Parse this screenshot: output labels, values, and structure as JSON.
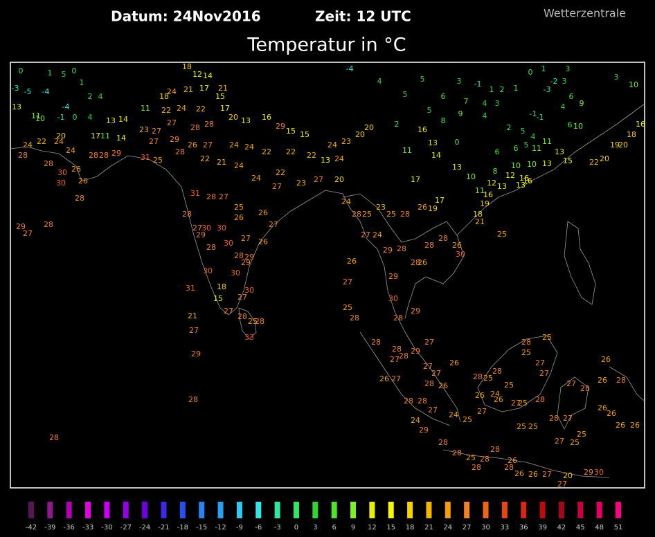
{
  "header": {
    "date_label": "Datum: 24Nov2016",
    "time_label": "Zeit: 12 UTC",
    "source": "Wetterzentrale",
    "title": "Temperatur in °C"
  },
  "legend": {
    "ticks": [
      -42,
      -39,
      -36,
      -33,
      -30,
      -27,
      -24,
      -21,
      -18,
      -15,
      -12,
      -9,
      -6,
      -3,
      0,
      3,
      6,
      9,
      12,
      15,
      18,
      21,
      24,
      27,
      30,
      33,
      36,
      39,
      42,
      45,
      48,
      51
    ],
    "colors": [
      "#5a145a",
      "#8c1a8c",
      "#b400b4",
      "#e600e6",
      "#c800f0",
      "#9600e6",
      "#7000e6",
      "#3c28e6",
      "#2850f0",
      "#2882f0",
      "#28a0f0",
      "#32c8f0",
      "#32e6e6",
      "#32e6a0",
      "#32e664",
      "#32d232",
      "#50e628",
      "#82f028",
      "#e6f000",
      "#f5f500",
      "#f5d200",
      "#f5b400",
      "#f5a000",
      "#f08228",
      "#f06414",
      "#e64614",
      "#d22814",
      "#be0a0a",
      "#a00a1e",
      "#c80046",
      "#e60064",
      "#ff0082"
    ]
  },
  "stations": {
    "values": [
      0,
      1,
      5,
      0,
      -3,
      -5,
      -4,
      1,
      2,
      4,
      13,
      -4,
      11,
      10,
      -1,
      0,
      4,
      13,
      14,
      11,
      22,
      24,
      22,
      17,
      15,
      17,
      21,
      18,
      12,
      14,
      24,
      21,
      18,
      23,
      27,
      27,
      28,
      28,
      20,
      13,
      16,
      29,
      15,
      15,
      20,
      22,
      24,
      24,
      24,
      17,
      11,
      14,
      27,
      29,
      26,
      27,
      24,
      24,
      22,
      22,
      22,
      24,
      23,
      20,
      20,
      13,
      24,
      28,
      28,
      30,
      26,
      28,
      28,
      29,
      31,
      25,
      28,
      22,
      21,
      24,
      24,
      22,
      27,
      23,
      27,
      20,
      26,
      30,
      28,
      31,
      28,
      27,
      25,
      26,
      26,
      27,
      28,
      27,
      30,
      30,
      30,
      29,
      28,
      28,
      29,
      27,
      26,
      24,
      28,
      25,
      23,
      25,
      28,
      26,
      19,
      17,
      17,
      27,
      24,
      29,
      28,
      28,
      28,
      28,
      26,
      30,
      18,
      19,
      21,
      25,
      26,
      27,
      25,
      28,
      29,
      30,
      28,
      29,
      26,
      30,
      30,
      29,
      31,
      18,
      15,
      27,
      30,
      27,
      28,
      25,
      28,
      33,
      21,
      27,
      29,
      28,
      28,
      29,
      27,
      28,
      28,
      28,
      28,
      29,
      27,
      27,
      27,
      26,
      26,
      27,
      27,
      28,
      26,
      28,
      28,
      24,
      29,
      27,
      24,
      25,
      27,
      28,
      25,
      28,
      25,
      26,
      24,
      26,
      27,
      25,
      25,
      28,
      25,
      27,
      27,
      28,
      25,
      25,
      28,
      27,
      27,
      27,
      28,
      26,
      28,
      26,
      26,
      26,
      26,
      26,
      28,
      28,
      28,
      25,
      28,
      26,
      28,
      28,
      26,
      26,
      27,
      20,
      29,
      30,
      25,
      25,
      27,
      -4,
      4,
      5,
      5,
      6,
      3,
      -1,
      1,
      2,
      1,
      0,
      1,
      -2,
      3,
      3,
      -3,
      6,
      9,
      4,
      7,
      4,
      3,
      5,
      8,
      9,
      4,
      2,
      5,
      -1,
      -1,
      5,
      6,
      11,
      4,
      11,
      13,
      6,
      2,
      16,
      13,
      14,
      11,
      0,
      13,
      10,
      8,
      10,
      10,
      13,
      12,
      16,
      16,
      12,
      13,
      11,
      15,
      19,
      20,
      22,
      20,
      18,
      16,
      10,
      3,
      10,
      6,
      16,
      13
    ]
  }
}
